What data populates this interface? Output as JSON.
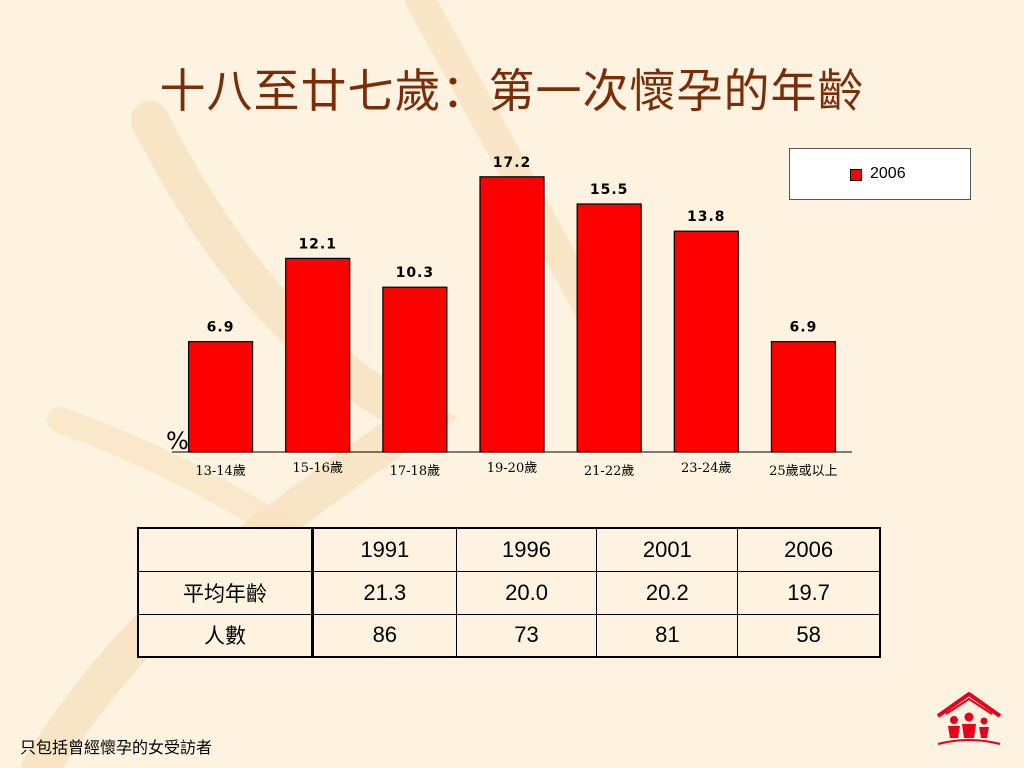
{
  "title": "十八至廿七歲：第一次懷孕的年齡",
  "chart_data": {
    "type": "bar",
    "categories": [
      "13-14歲",
      "15-16歲",
      "17-18歲",
      "19-20歲",
      "21-22歲",
      "23-24歲",
      "25歲或以上"
    ],
    "series": [
      {
        "name": "2006",
        "values": [
          6.9,
          12.1,
          10.3,
          17.2,
          15.5,
          13.8,
          6.9
        ],
        "color": "#ff0000"
      }
    ],
    "ylabel": "%",
    "ylim": [
      0,
      20
    ],
    "grid": false,
    "legend_position": "top-right",
    "data_labels": true
  },
  "table": {
    "headers": [
      "",
      "1991",
      "1996",
      "2001",
      "2006"
    ],
    "rows": [
      {
        "label": "平均年齡",
        "values": [
          "21.3",
          "20.0",
          "20.2",
          "19.7"
        ]
      },
      {
        "label": "人數",
        "values": [
          "86",
          "73",
          "81",
          "58"
        ]
      }
    ]
  },
  "footnote": "只包括曾經懷孕的女受訪者",
  "logo": {
    "icon": "family-house-icon",
    "color": "#e8001c"
  },
  "background_accent": "#f4dcb2"
}
